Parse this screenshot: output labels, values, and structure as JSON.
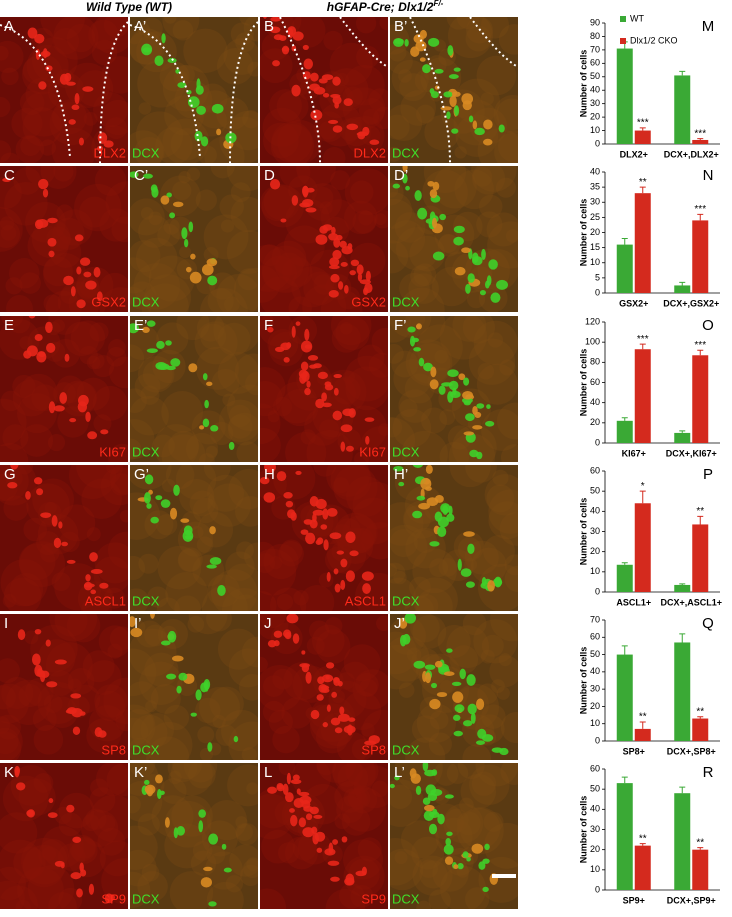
{
  "header": {
    "wt": "Wild Type (WT)",
    "mutant": "hGFAP-Cre; Dlx1/2",
    "mutant_sup": "F/-"
  },
  "rows": [
    {
      "panels": [
        {
          "letter": "A",
          "stain": "DLX2"
        },
        {
          "letter": "A’",
          "stain": "DCX"
        },
        {
          "letter": "B",
          "stain": "DLX2"
        },
        {
          "letter": "B’",
          "stain": "DCX"
        }
      ]
    },
    {
      "panels": [
        {
          "letter": "C",
          "stain": "GSX2"
        },
        {
          "letter": "C’",
          "stain": "DCX"
        },
        {
          "letter": "D",
          "stain": "GSX2"
        },
        {
          "letter": "D’",
          "stain": "DCX"
        }
      ]
    },
    {
      "panels": [
        {
          "letter": "E",
          "stain": "KI67"
        },
        {
          "letter": "E’",
          "stain": "DCX"
        },
        {
          "letter": "F",
          "stain": "KI67"
        },
        {
          "letter": "F’",
          "stain": "DCX"
        }
      ]
    },
    {
      "panels": [
        {
          "letter": "G",
          "stain": "ASCL1"
        },
        {
          "letter": "G’",
          "stain": "DCX"
        },
        {
          "letter": "H",
          "stain": "ASCL1"
        },
        {
          "letter": "H’",
          "stain": "DCX"
        }
      ]
    },
    {
      "panels": [
        {
          "letter": "I",
          "stain": "SP8"
        },
        {
          "letter": "I’",
          "stain": "DCX"
        },
        {
          "letter": "J",
          "stain": "SP8"
        },
        {
          "letter": "J’",
          "stain": "DCX"
        }
      ]
    },
    {
      "panels": [
        {
          "letter": "K",
          "stain": "SP9"
        },
        {
          "letter": "K’",
          "stain": "DCX"
        },
        {
          "letter": "L",
          "stain": "SP9"
        },
        {
          "letter": "L’",
          "stain": "DCX"
        }
      ]
    }
  ],
  "legend": [
    {
      "name": "WT",
      "color": "#3aa935"
    },
    {
      "name": "Dlx1/2 CKO",
      "color": "#d42a1e"
    }
  ],
  "charts": [
    {
      "type": "bar",
      "letter": "M",
      "ylabel": "Number of cells",
      "categories": [
        "DLX2+",
        "DCX+,DLX2+"
      ],
      "ylim": [
        0,
        90
      ],
      "yticks": [
        0,
        10,
        20,
        30,
        40,
        50,
        60,
        70,
        80,
        90
      ],
      "series": [
        {
          "color": "#3aa935",
          "values": [
            71,
            51
          ],
          "errors": [
            5,
            3
          ]
        },
        {
          "color": "#d42a1e",
          "values": [
            10,
            3
          ],
          "errors": [
            2,
            1
          ],
          "stars": [
            "***",
            "***"
          ]
        }
      ]
    },
    {
      "type": "bar",
      "letter": "N",
      "ylabel": "Number of cells",
      "categories": [
        "GSX2+",
        "DCX+,GSX2+"
      ],
      "ylim": [
        0,
        40
      ],
      "yticks": [
        0,
        5,
        10,
        15,
        20,
        25,
        30,
        35,
        40
      ],
      "series": [
        {
          "color": "#3aa935",
          "values": [
            16,
            2.5
          ],
          "errors": [
            2,
            1
          ]
        },
        {
          "color": "#d42a1e",
          "values": [
            33,
            24
          ],
          "errors": [
            2,
            2
          ],
          "stars": [
            "**",
            "***"
          ]
        }
      ]
    },
    {
      "type": "bar",
      "letter": "O",
      "ylabel": "Number of cells",
      "categories": [
        "KI67+",
        "DCX+,KI67+"
      ],
      "ylim": [
        0,
        120
      ],
      "yticks": [
        0,
        20,
        40,
        60,
        80,
        100,
        120
      ],
      "series": [
        {
          "color": "#3aa935",
          "values": [
            22,
            10
          ],
          "errors": [
            3,
            2
          ]
        },
        {
          "color": "#d42a1e",
          "values": [
            93,
            87
          ],
          "errors": [
            5,
            5
          ],
          "stars": [
            "***",
            "***"
          ]
        }
      ]
    },
    {
      "type": "bar",
      "letter": "P",
      "ylabel": "Number of cells",
      "categories": [
        "ASCL1+",
        "DCX+,ASCL1+"
      ],
      "ylim": [
        0,
        60
      ],
      "yticks": [
        0,
        10,
        20,
        30,
        40,
        50,
        60
      ],
      "series": [
        {
          "color": "#3aa935",
          "values": [
            13.5,
            3.5
          ],
          "errors": [
            1,
            0.5
          ]
        },
        {
          "color": "#d42a1e",
          "values": [
            44,
            33.5
          ],
          "errors": [
            6,
            4
          ],
          "stars": [
            "*",
            "**"
          ]
        }
      ]
    },
    {
      "type": "bar",
      "letter": "Q",
      "ylabel": "Number of cells",
      "categories": [
        "SP8+",
        "DCX+,SP8+"
      ],
      "ylim": [
        0,
        70
      ],
      "yticks": [
        0,
        10,
        20,
        30,
        40,
        50,
        60,
        70
      ],
      "series": [
        {
          "color": "#3aa935",
          "values": [
            50,
            57
          ],
          "errors": [
            5,
            5
          ]
        },
        {
          "color": "#d42a1e",
          "values": [
            7,
            13
          ],
          "errors": [
            4,
            1
          ],
          "stars": [
            "**",
            "**"
          ]
        }
      ]
    },
    {
      "type": "bar",
      "letter": "R",
      "ylabel": "Number of cells",
      "categories": [
        "SP9+",
        "DCX+,SP9+"
      ],
      "ylim": [
        0,
        60
      ],
      "yticks": [
        0,
        10,
        20,
        30,
        40,
        50,
        60
      ],
      "series": [
        {
          "color": "#3aa935",
          "values": [
            53,
            48
          ],
          "errors": [
            3,
            3
          ]
        },
        {
          "color": "#d42a1e",
          "values": [
            22,
            20
          ],
          "errors": [
            1,
            1
          ],
          "stars": [
            "**",
            "**"
          ]
        }
      ]
    }
  ]
}
